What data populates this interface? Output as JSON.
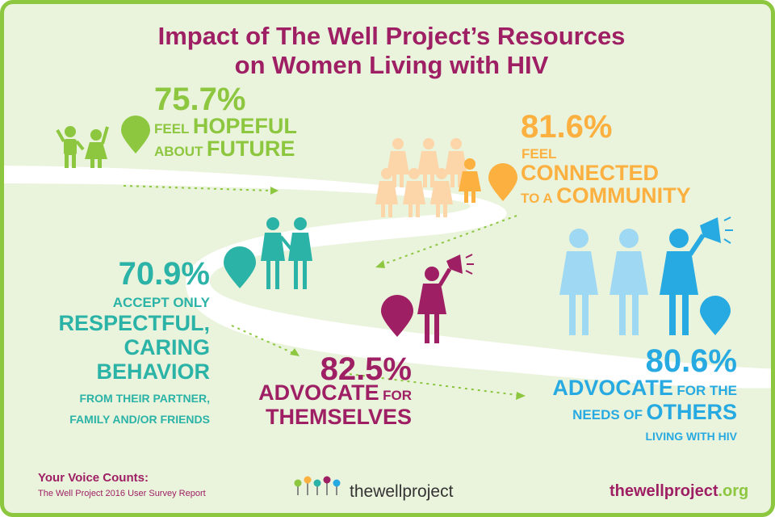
{
  "title": {
    "line1": "Impact of The Well Project’s Resources",
    "line2": "on Women Living with HIV"
  },
  "stats": {
    "hopeful": {
      "percent": "75.7%",
      "feel": "FEEL",
      "hopeful": "HOPEFUL",
      "about": "ABOUT",
      "future": "FUTURE"
    },
    "connected": {
      "percent": "81.6%",
      "feel": "FEEL",
      "connected": "CONNECTED",
      "to_a": "TO A",
      "community": "COMMUNITY"
    },
    "respectful": {
      "percent": "70.9%",
      "accept": "ACCEPT ONLY",
      "respectful": "RESPECTFUL,",
      "caring": "CARING",
      "behavior": "BEHAVIOR",
      "from": "FROM THEIR PARTNER,",
      "family": "FAMILY AND/OR FRIENDS"
    },
    "themselves": {
      "percent": "82.5%",
      "advocate": "ADVOCATE",
      "for": "FOR",
      "themselves": "THEMSELVES"
    },
    "others": {
      "percent": "80.6%",
      "advocate": "ADVOCATE",
      "for_the": "FOR THE",
      "needs_of": "NEEDS OF",
      "others": "OTHERS",
      "living": "LIVING WITH HIV"
    }
  },
  "footer": {
    "voice": "Your Voice Counts:",
    "report": "The Well Project 2016 User Survey Report",
    "logo_text": "thewellproject",
    "url_main": "thewellproject",
    "url_tld": ".org"
  },
  "colors": {
    "green": "#8dc63f",
    "orange": "#fbb040",
    "teal": "#2ab3a6",
    "magenta": "#9e1f63",
    "blue": "#27aae1",
    "background": "#eaf3dc"
  },
  "icons": [
    "children-icon",
    "crowd-women-icon",
    "couple-icon",
    "woman-megaphone-icon",
    "women-group-megaphone-icon",
    "map-pin-icon",
    "flower-logo-icon"
  ]
}
